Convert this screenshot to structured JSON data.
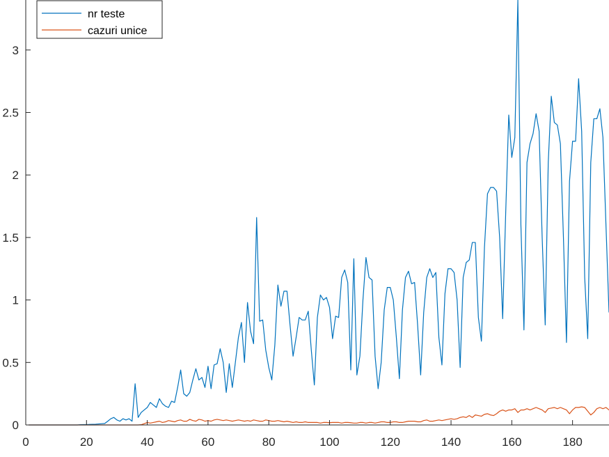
{
  "chart_data": {
    "type": "line",
    "title": "",
    "xlabel": "",
    "ylabel": "",
    "xlim": [
      0,
      192
    ],
    "ylim": [
      0,
      3.4
    ],
    "grid": false,
    "legend_position": "top-left",
    "x_ticks": [
      "0",
      "20",
      "40",
      "60",
      "80",
      "100",
      "120",
      "140",
      "160",
      "180"
    ],
    "y_ticks": [
      "0",
      "0.5",
      "1",
      "1.5",
      "2",
      "2.5",
      "3"
    ],
    "series": [
      {
        "name": "nr teste",
        "color": "#0072BD",
        "x_start": 1,
        "values": [
          0,
          0,
          0,
          0,
          0,
          0,
          0,
          0,
          0,
          0,
          0,
          0,
          0,
          0,
          0,
          0,
          0,
          0.002,
          0.003,
          0.003,
          0.004,
          0.005,
          0.006,
          0.008,
          0.01,
          0.012,
          0.03,
          0.05,
          0.06,
          0.04,
          0.03,
          0.05,
          0.04,
          0.05,
          0.03,
          0.33,
          0.06,
          0.1,
          0.12,
          0.14,
          0.18,
          0.16,
          0.14,
          0.21,
          0.17,
          0.15,
          0.14,
          0.19,
          0.18,
          0.3,
          0.44,
          0.25,
          0.23,
          0.26,
          0.36,
          0.45,
          0.36,
          0.38,
          0.3,
          0.47,
          0.29,
          0.48,
          0.49,
          0.61,
          0.5,
          0.26,
          0.49,
          0.3,
          0.5,
          0.7,
          0.82,
          0.5,
          0.98,
          0.75,
          0.65,
          1.66,
          0.83,
          0.84,
          0.6,
          0.46,
          0.36,
          0.64,
          1.12,
          0.95,
          1.07,
          1.07,
          0.8,
          0.55,
          0.7,
          0.86,
          0.84,
          0.84,
          0.91,
          0.6,
          0.32,
          0.86,
          1.04,
          1.0,
          1.02,
          0.94,
          0.69,
          0.87,
          0.86,
          1.18,
          1.24,
          1.14,
          0.44,
          1.33,
          0.4,
          0.55,
          1.0,
          1.34,
          1.18,
          1.16,
          0.55,
          0.29,
          0.5,
          0.92,
          1.1,
          1.1,
          1.0,
          0.7,
          0.37,
          0.92,
          1.18,
          1.23,
          1.13,
          1.14,
          0.8,
          0.4,
          0.9,
          1.18,
          1.25,
          1.18,
          1.22,
          0.7,
          0.48,
          1.05,
          1.25,
          1.25,
          1.22,
          1.0,
          0.46,
          1.18,
          1.3,
          1.32,
          1.46,
          1.46,
          0.86,
          0.67,
          1.42,
          1.85,
          1.9,
          1.9,
          1.87,
          1.5,
          0.85,
          1.7,
          2.48,
          2.14,
          2.3,
          3.4,
          1.6,
          0.76,
          2.1,
          2.25,
          2.33,
          2.49,
          2.35,
          1.5,
          0.8,
          2.1,
          2.63,
          2.42,
          2.4,
          2.25,
          1.5,
          0.66,
          1.95,
          2.27,
          2.27,
          2.77,
          2.35,
          1.18,
          0.69,
          2.1,
          2.45,
          2.45,
          2.53,
          2.3,
          1.6,
          0.9
        ]
      },
      {
        "name": "cazuri unice",
        "color": "#D95319",
        "x_start": 1,
        "values": [
          0,
          0,
          0,
          0,
          0,
          0,
          0,
          0,
          0,
          0,
          0,
          0,
          0,
          0,
          0,
          0,
          0,
          0,
          0,
          0,
          0,
          0,
          0,
          0,
          0,
          0,
          0,
          0,
          0,
          0,
          0,
          0,
          0,
          0,
          0,
          0,
          0,
          0.002,
          0.01,
          0.02,
          0.015,
          0.02,
          0.025,
          0.03,
          0.02,
          0.025,
          0.035,
          0.03,
          0.025,
          0.035,
          0.04,
          0.03,
          0.03,
          0.045,
          0.035,
          0.03,
          0.045,
          0.04,
          0.03,
          0.035,
          0.03,
          0.04,
          0.045,
          0.04,
          0.035,
          0.04,
          0.035,
          0.03,
          0.035,
          0.04,
          0.035,
          0.03,
          0.035,
          0.03,
          0.04,
          0.035,
          0.03,
          0.03,
          0.04,
          0.035,
          0.03,
          0.03,
          0.035,
          0.03,
          0.025,
          0.03,
          0.025,
          0.02,
          0.025,
          0.02,
          0.02,
          0.025,
          0.02,
          0.02,
          0.02,
          0.02,
          0.015,
          0.02,
          0.02,
          0.018,
          0.02,
          0.02,
          0.02,
          0.015,
          0.02,
          0.02,
          0.018,
          0.015,
          0.015,
          0.02,
          0.02,
          0.015,
          0.02,
          0.02,
          0.015,
          0.02,
          0.025,
          0.025,
          0.02,
          0.02,
          0.025,
          0.025,
          0.02,
          0.02,
          0.025,
          0.03,
          0.03,
          0.03,
          0.025,
          0.025,
          0.035,
          0.04,
          0.03,
          0.03,
          0.035,
          0.04,
          0.035,
          0.04,
          0.045,
          0.05,
          0.045,
          0.05,
          0.06,
          0.065,
          0.06,
          0.075,
          0.06,
          0.08,
          0.075,
          0.07,
          0.085,
          0.09,
          0.08,
          0.075,
          0.09,
          0.11,
          0.12,
          0.11,
          0.12,
          0.12,
          0.13,
          0.1,
          0.12,
          0.12,
          0.13,
          0.12,
          0.13,
          0.14,
          0.13,
          0.12,
          0.1,
          0.13,
          0.135,
          0.14,
          0.13,
          0.14,
          0.13,
          0.12,
          0.09,
          0.12,
          0.14,
          0.14,
          0.145,
          0.14,
          0.11,
          0.08,
          0.1,
          0.13,
          0.14,
          0.13,
          0.14,
          0.12,
          0.1,
          0.09
        ]
      }
    ]
  }
}
